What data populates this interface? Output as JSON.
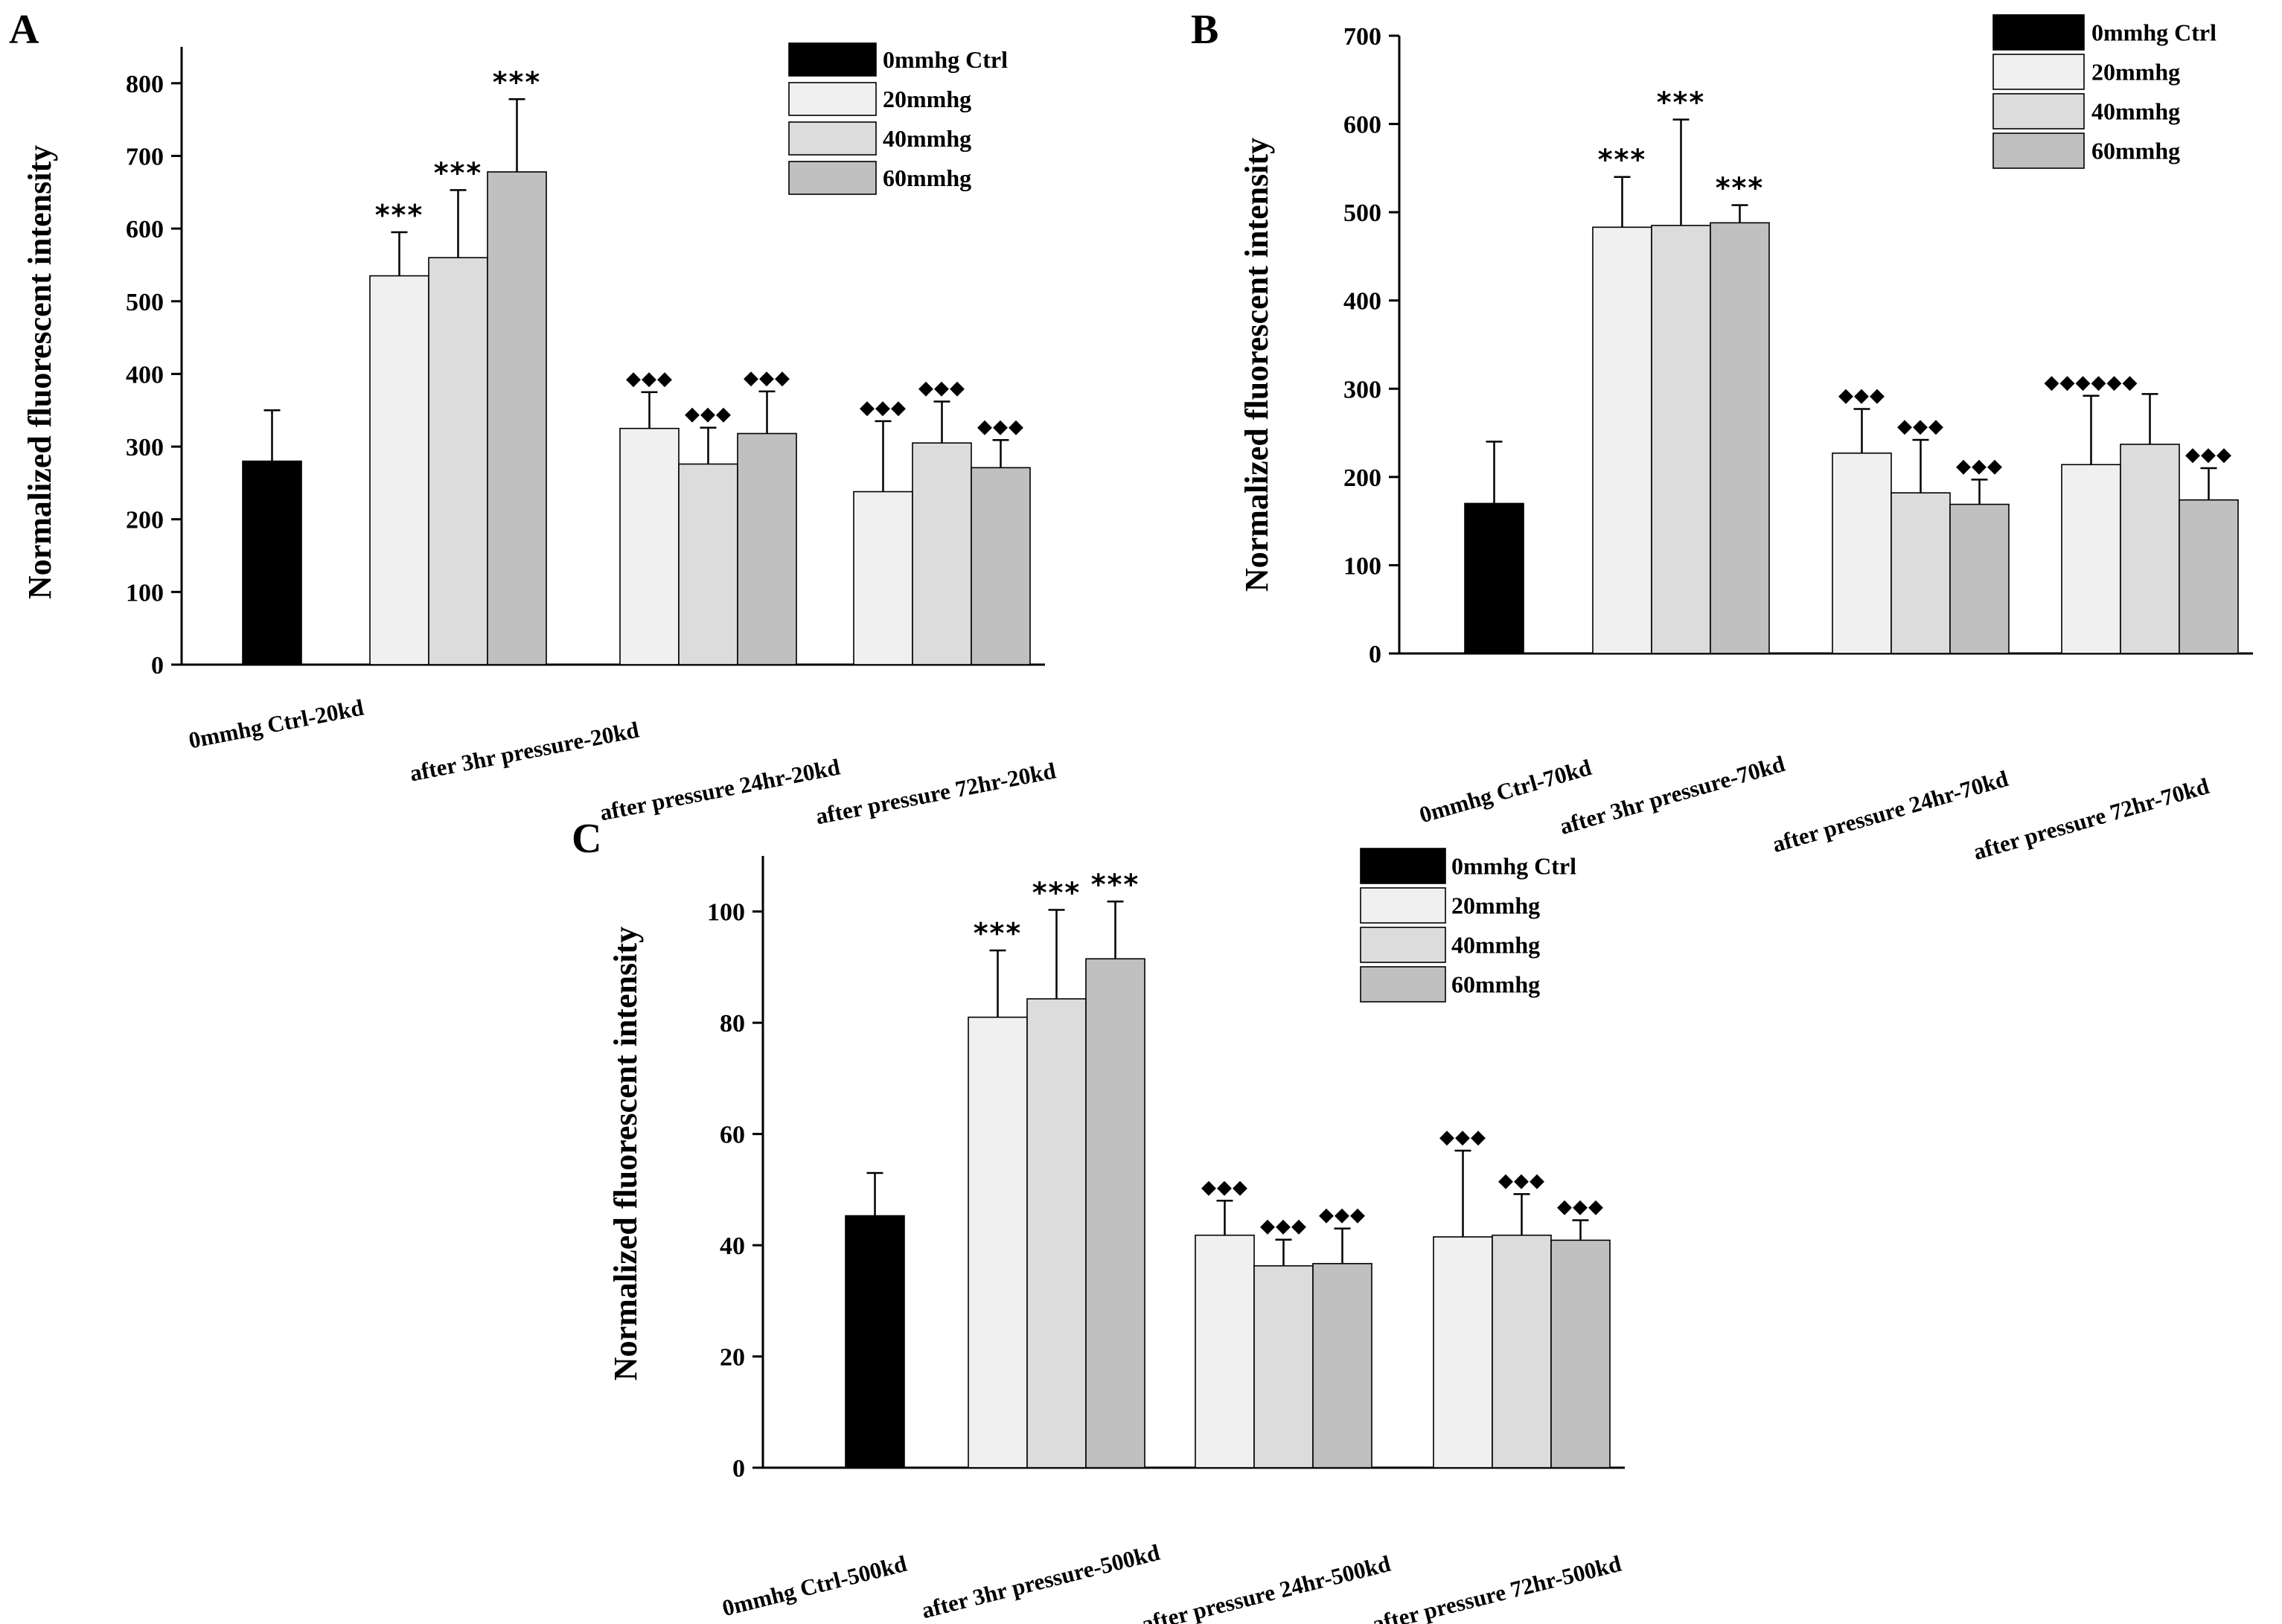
{
  "figure": {
    "panels": [
      "A",
      "B",
      "C"
    ],
    "legend_labels": [
      "0mmhg Ctrl",
      "20mmhg",
      "40mmhg",
      "60mmhg"
    ],
    "colors": {
      "0mmhg Ctrl": "#000000",
      "20mmhg": "#f0f0f0",
      "40mmhg": "#dcdcdc",
      "60mmhg": "#c0c0c0"
    }
  },
  "chart_data": [
    {
      "panel": "A",
      "type": "bar",
      "ylabel": "Normalized fluorescent intensity",
      "ylim": [
        0,
        850
      ],
      "yticks": [
        0,
        100,
        200,
        300,
        400,
        500,
        600,
        700,
        800
      ],
      "groups": [
        {
          "label": "0mmhg Ctrl-20kd",
          "bars": [
            {
              "series": "0mmhg Ctrl",
              "value": 280,
              "err": 70,
              "sig": ""
            }
          ]
        },
        {
          "label": "after 3hr pressure-20kd",
          "bars": [
            {
              "series": "20mmhg",
              "value": 535,
              "err": 60,
              "sig": "***"
            },
            {
              "series": "40mmhg",
              "value": 560,
              "err": 93,
              "sig": "***"
            },
            {
              "series": "60mmhg",
              "value": 678,
              "err": 100,
              "sig": "***"
            }
          ]
        },
        {
          "label": "after pressure 24hr-20kd",
          "bars": [
            {
              "series": "20mmhg",
              "value": 325,
              "err": 50,
              "sig": "◆◆◆"
            },
            {
              "series": "40mmhg",
              "value": 276,
              "err": 50,
              "sig": "◆◆◆"
            },
            {
              "series": "60mmhg",
              "value": 318,
              "err": 58,
              "sig": "◆◆◆"
            }
          ]
        },
        {
          "label": "after pressure 72hr-20kd",
          "bars": [
            {
              "series": "20mmhg",
              "value": 238,
              "err": 97,
              "sig": "◆◆◆"
            },
            {
              "series": "40mmhg",
              "value": 305,
              "err": 57,
              "sig": "◆◆◆"
            },
            {
              "series": "60mmhg",
              "value": 271,
              "err": 38,
              "sig": "◆◆◆"
            }
          ]
        }
      ]
    },
    {
      "panel": "B",
      "type": "bar",
      "ylabel": "Normalized fluorescent intensity",
      "ylim": [
        0,
        700
      ],
      "yticks": [
        0,
        100,
        200,
        300,
        400,
        500,
        600,
        700
      ],
      "groups": [
        {
          "label": "0mmhg Ctrl-70kd",
          "bars": [
            {
              "series": "0mmhg Ctrl",
              "value": 170,
              "err": 70,
              "sig": ""
            }
          ]
        },
        {
          "label": "after 3hr pressure-70kd",
          "bars": [
            {
              "series": "20mmhg",
              "value": 483,
              "err": 57,
              "sig": "***"
            },
            {
              "series": "40mmhg",
              "value": 485,
              "err": 120,
              "sig": "***"
            },
            {
              "series": "60mmhg",
              "value": 488,
              "err": 20,
              "sig": "***"
            }
          ]
        },
        {
          "label": "after pressure 24hr-70kd",
          "bars": [
            {
              "series": "20mmhg",
              "value": 227,
              "err": 50,
              "sig": "◆◆◆"
            },
            {
              "series": "40mmhg",
              "value": 182,
              "err": 60,
              "sig": "◆◆◆"
            },
            {
              "series": "60mmhg",
              "value": 169,
              "err": 28,
              "sig": "◆◆◆"
            }
          ]
        },
        {
          "label": "after pressure 72hr-70kd",
          "bars": [
            {
              "series": "20mmhg",
              "value": 214,
              "err": 78,
              "sig": "◆◆◆◆◆◆"
            },
            {
              "series": "40mmhg",
              "value": 237,
              "err": 57,
              "sig": ""
            },
            {
              "series": "60mmhg",
              "value": 174,
              "err": 36,
              "sig": "◆◆◆"
            }
          ]
        }
      ]
    },
    {
      "panel": "C",
      "type": "bar",
      "ylabel": "Normalized fluorescent intensity",
      "ylim": [
        0,
        110
      ],
      "yticks": [
        0,
        20,
        40,
        60,
        80,
        100
      ],
      "groups": [
        {
          "label": "0mmhg Ctrl-500kd",
          "bars": [
            {
              "series": "0mmhg Ctrl",
              "value": 45.3,
              "err": 7.7,
              "sig": ""
            }
          ]
        },
        {
          "label": "after 3hr pressure-500kd",
          "bars": [
            {
              "series": "20mmhg",
              "value": 81,
              "err": 12,
              "sig": "***"
            },
            {
              "series": "40mmhg",
              "value": 84.3,
              "err": 16,
              "sig": "***"
            },
            {
              "series": "60mmhg",
              "value": 91.5,
              "err": 10.3,
              "sig": "***"
            }
          ]
        },
        {
          "label": "after pressure 24hr-500kd",
          "bars": [
            {
              "series": "20mmhg",
              "value": 41.8,
              "err": 6.2,
              "sig": "◆◆◆"
            },
            {
              "series": "40mmhg",
              "value": 36.3,
              "err": 4.7,
              "sig": "◆◆◆"
            },
            {
              "series": "60mmhg",
              "value": 36.7,
              "err": 6.3,
              "sig": "◆◆◆"
            }
          ]
        },
        {
          "label": "after pressure 72hr-500kd",
          "bars": [
            {
              "series": "20mmhg",
              "value": 41.5,
              "err": 15.5,
              "sig": "◆◆◆"
            },
            {
              "series": "40mmhg",
              "value": 41.8,
              "err": 7.4,
              "sig": "◆◆◆"
            },
            {
              "series": "60mmhg",
              "value": 40.9,
              "err": 3.6,
              "sig": "◆◆◆"
            }
          ]
        }
      ]
    }
  ]
}
